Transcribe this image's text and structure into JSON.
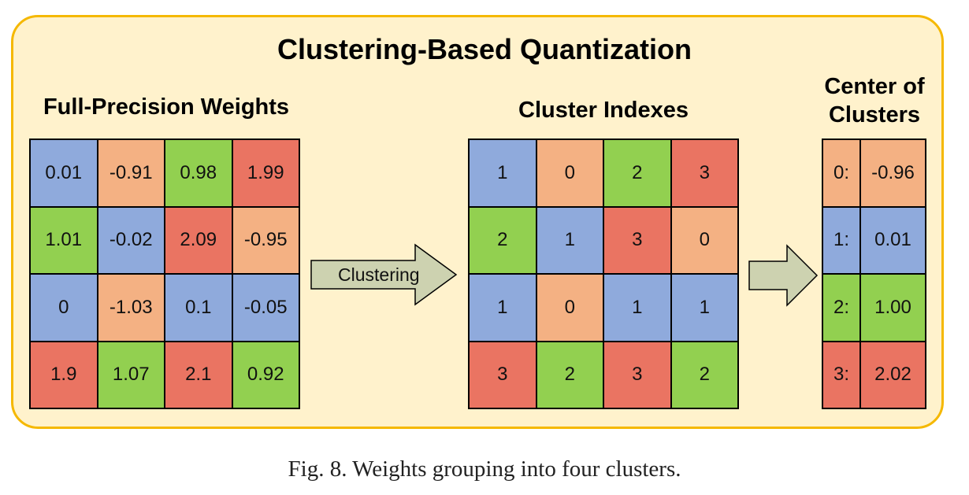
{
  "title": "Clustering-Based Quantization",
  "sections": {
    "weights": {
      "label": "Full-Precision Weights"
    },
    "indexes": {
      "label": "Cluster Indexes"
    },
    "centers": {
      "label_line1": "Center of",
      "label_line2": "Clusters"
    }
  },
  "colors": {
    "cluster0": "#f4b183",
    "cluster1": "#8faadc",
    "cluster2": "#92d050",
    "cluster3": "#ea7462",
    "arrow": "#cdd2b0",
    "panel_bg": "#fff2cc",
    "panel_border": "#f5b800"
  },
  "weights": [
    [
      {
        "v": "0.01",
        "c": 1
      },
      {
        "v": "-0.91",
        "c": 0
      },
      {
        "v": "0.98",
        "c": 2
      },
      {
        "v": "1.99",
        "c": 3
      }
    ],
    [
      {
        "v": "1.01",
        "c": 2
      },
      {
        "v": "-0.02",
        "c": 1
      },
      {
        "v": "2.09",
        "c": 3
      },
      {
        "v": "-0.95",
        "c": 0
      }
    ],
    [
      {
        "v": "0",
        "c": 1
      },
      {
        "v": "-1.03",
        "c": 0
      },
      {
        "v": "0.1",
        "c": 1
      },
      {
        "v": "-0.05",
        "c": 1
      }
    ],
    [
      {
        "v": "1.9",
        "c": 3
      },
      {
        "v": "1.07",
        "c": 2
      },
      {
        "v": "2.1",
        "c": 3
      },
      {
        "v": "0.92",
        "c": 2
      }
    ]
  ],
  "indexes": [
    [
      "1",
      "0",
      "2",
      "3"
    ],
    [
      "2",
      "1",
      "3",
      "0"
    ],
    [
      "1",
      "0",
      "1",
      "1"
    ],
    [
      "3",
      "2",
      "3",
      "2"
    ]
  ],
  "centers": [
    {
      "index": "0:",
      "value": "-0.96"
    },
    {
      "index": "1:",
      "value": "0.01"
    },
    {
      "index": "2:",
      "value": "1.00"
    },
    {
      "index": "3:",
      "value": "2.02"
    }
  ],
  "arrow_label": "Clustering",
  "caption": "Fig. 8.  Weights grouping into four clusters."
}
